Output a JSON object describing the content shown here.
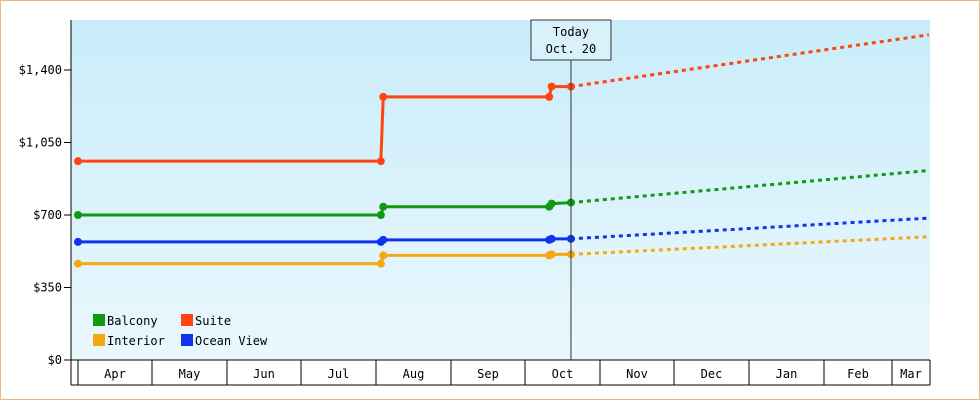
{
  "chart_data": {
    "type": "line",
    "currency_ticks": [
      "$0",
      "$350",
      "$700",
      "$1,050",
      "$1,400"
    ],
    "ylim": [
      0,
      1400
    ],
    "x_categories": [
      "Apr",
      "May",
      "Jun",
      "Jul",
      "Aug",
      "Sep",
      "Oct",
      "Nov",
      "Dec",
      "Jan",
      "Feb",
      "Mar"
    ],
    "today_marker": {
      "line1": "Today",
      "line2": "Oct. 20",
      "date": "Oct. 20"
    },
    "legend": [
      "Balcony",
      "Suite",
      "Interior",
      "Ocean View"
    ],
    "series": [
      {
        "name": "Balcony",
        "color": "#119911",
        "actual": [
          [
            "Apr 1",
            700
          ],
          [
            "Aug 3",
            700
          ],
          [
            "Aug 4",
            740
          ],
          [
            "Oct 11",
            740
          ],
          [
            "Oct 12",
            755
          ],
          [
            "Oct 20",
            760
          ]
        ],
        "forecast": [
          [
            "Oct 20",
            760
          ],
          [
            "Mar 31",
            915
          ]
        ]
      },
      {
        "name": "Suite",
        "color": "#ff4411",
        "actual": [
          [
            "Apr 1",
            960
          ],
          [
            "Aug 3",
            960
          ],
          [
            "Aug 4",
            1270
          ],
          [
            "Oct 11",
            1270
          ],
          [
            "Oct 12",
            1320
          ],
          [
            "Oct 20",
            1320
          ]
        ],
        "forecast": [
          [
            "Oct 20",
            1320
          ],
          [
            "Mar 31",
            1570
          ]
        ]
      },
      {
        "name": "Interior",
        "color": "#f5a80f",
        "actual": [
          [
            "Apr 1",
            465
          ],
          [
            "Aug 3",
            465
          ],
          [
            "Aug 4",
            505
          ],
          [
            "Oct 11",
            505
          ],
          [
            "Oct 12",
            510
          ],
          [
            "Oct 20",
            510
          ]
        ],
        "forecast": [
          [
            "Oct 20",
            510
          ],
          [
            "Mar 31",
            595
          ]
        ]
      },
      {
        "name": "Ocean View",
        "color": "#1133ee",
        "actual": [
          [
            "Apr 1",
            570
          ],
          [
            "Aug 3",
            570
          ],
          [
            "Aug 4",
            580
          ],
          [
            "Oct 11",
            580
          ],
          [
            "Oct 12",
            585
          ],
          [
            "Oct 20",
            585
          ]
        ],
        "forecast": [
          [
            "Oct 20",
            585
          ],
          [
            "Mar 31",
            685
          ]
        ]
      }
    ]
  }
}
